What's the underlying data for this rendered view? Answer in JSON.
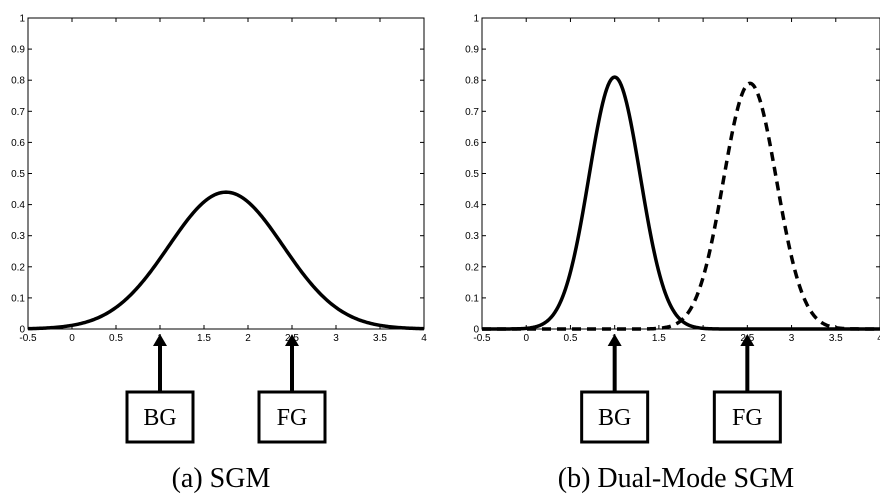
{
  "chart_data": [
    {
      "type": "line",
      "caption": "(a)  SGM",
      "xlim": [
        -0.5,
        4
      ],
      "ylim": [
        0,
        1
      ],
      "x_ticks": [
        "-0.5",
        "0",
        "0.5",
        "1",
        "1.5",
        "2",
        "2.5",
        "3",
        "3.5",
        "4"
      ],
      "y_ticks": [
        "0",
        "0.1",
        "0.2",
        "0.3",
        "0.4",
        "0.5",
        "0.6",
        "0.7",
        "0.8",
        "0.9",
        "1"
      ],
      "grid": false,
      "series": [
        {
          "style": "solid",
          "color": "#000000",
          "shape": "gaussian",
          "peak_x": 1.75,
          "peak_y": 0.44,
          "sigma": 0.65
        }
      ],
      "markers": [
        {
          "label": "BG",
          "x": 1
        },
        {
          "label": "FG",
          "x": 2.5
        }
      ]
    },
    {
      "type": "line",
      "caption": "(b)  Dual-Mode SGM",
      "xlim": [
        -0.5,
        4
      ],
      "ylim": [
        0,
        1
      ],
      "x_ticks": [
        "-0.5",
        "0",
        "0.5",
        "1",
        "1.5",
        "2",
        "2.5",
        "3",
        "3.5",
        "4"
      ],
      "y_ticks": [
        "0",
        "0.1",
        "0.2",
        "0.3",
        "0.4",
        "0.5",
        "0.6",
        "0.7",
        "0.8",
        "0.9",
        "1"
      ],
      "grid": false,
      "series": [
        {
          "style": "solid",
          "color": "#000000",
          "shape": "gaussian",
          "peak_x": 1.0,
          "peak_y": 0.81,
          "sigma": 0.29
        },
        {
          "style": "dashed",
          "color": "#000000",
          "shape": "gaussian",
          "peak_x": 2.53,
          "peak_y": 0.79,
          "sigma": 0.3
        }
      ],
      "markers": [
        {
          "label": "BG",
          "x": 1
        },
        {
          "label": "FG",
          "x": 2.5
        }
      ]
    }
  ]
}
